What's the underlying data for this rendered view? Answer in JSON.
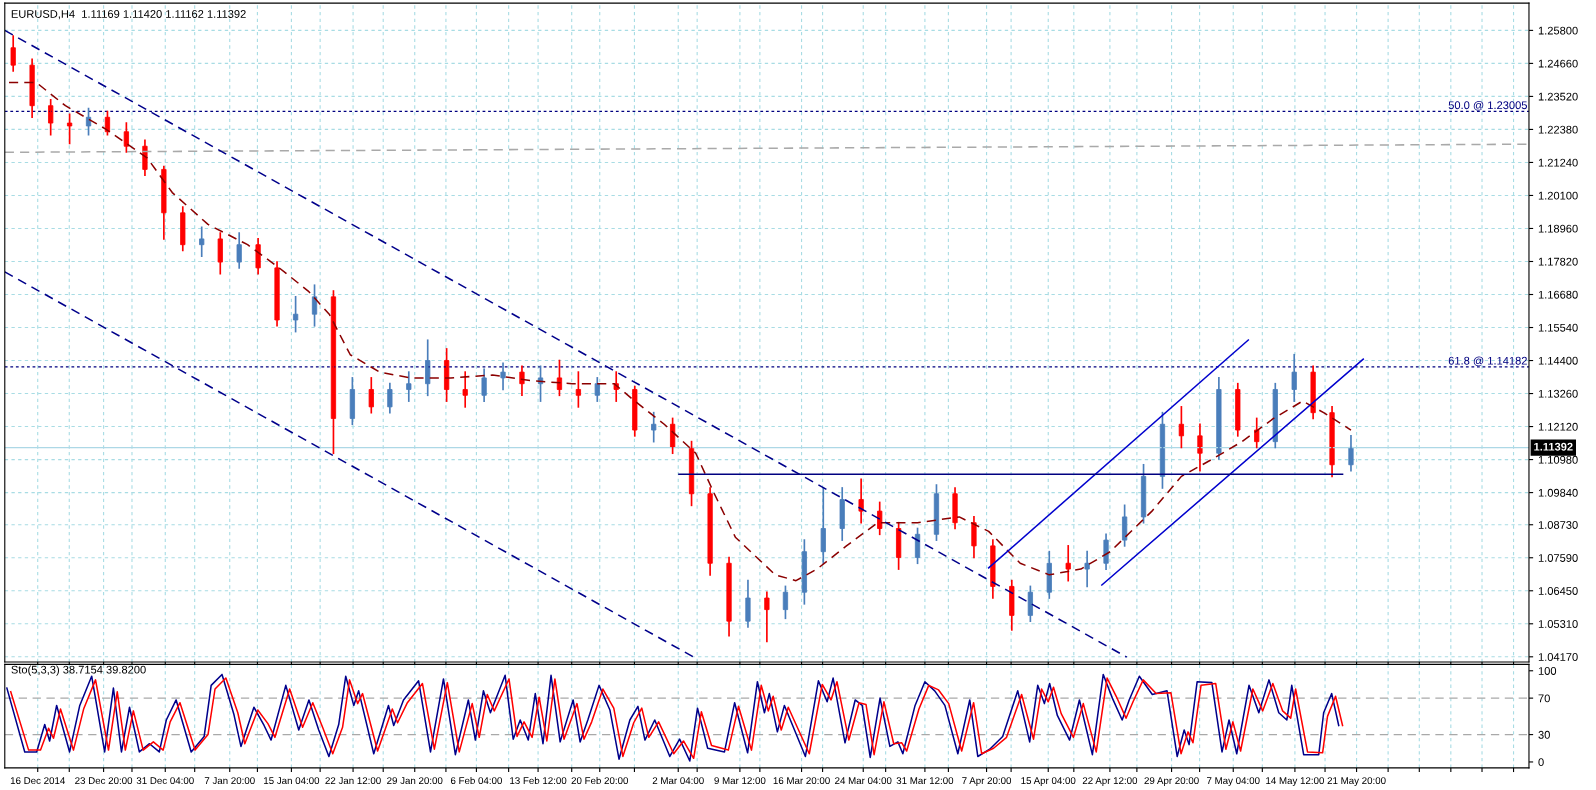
{
  "chart_data": [
    {
      "type": "candlestick",
      "title": "EURUSD,H4  1.11169 1.11420 1.11162 1.11392",
      "x": [
        "2014-12-13T02:00",
        "2014-12-15T08:00",
        "2014-12-17T13:00",
        "2014-12-19T19:00",
        "2014-12-22T01:00",
        "2014-12-24T07:00",
        "2014-12-26T13:00",
        "2014-12-28T18:00",
        "2014-12-31T00:00",
        "2015-01-02T06:00",
        "2015-01-04T12:00",
        "2015-01-06T17:00",
        "2015-01-08T23:00",
        "2015-01-11T05:00",
        "2015-01-13T11:00",
        "2015-01-15T16:00",
        "2015-01-17T22:00",
        "2015-01-20T04:00",
        "2015-01-22T10:00",
        "2015-01-24T16:00",
        "2015-01-26T21:00",
        "2015-01-29T03:00",
        "2015-01-31T09:00",
        "2015-02-02T15:00",
        "2015-02-04T20:00",
        "2015-02-07T02:00",
        "2015-02-09T08:00",
        "2015-02-11T14:00",
        "2015-02-13T19:00",
        "2015-02-16T01:00",
        "2015-02-18T07:00",
        "2015-02-20T13:00",
        "2015-02-22T19:00",
        "2015-02-25T00:00",
        "2015-02-27T06:00",
        "2015-03-01T12:00",
        "2015-03-03T18:00",
        "2015-03-05T23:00",
        "2015-03-08T05:00",
        "2015-03-10T11:00",
        "2015-03-12T17:00",
        "2015-03-14T22:00",
        "2015-03-17T04:00",
        "2015-03-19T10:00",
        "2015-03-21T16:00",
        "2015-03-23T22:00",
        "2015-03-26T03:00",
        "2015-03-28T09:00",
        "2015-03-30T15:00",
        "2015-04-01T21:00",
        "2015-04-04T02:00",
        "2015-04-06T08:00",
        "2015-04-08T14:00",
        "2015-04-10T20:00",
        "2015-04-13T01:00",
        "2015-04-15T07:00",
        "2015-04-17T13:00",
        "2015-04-19T19:00",
        "2015-04-22T01:00",
        "2015-04-24T06:00",
        "2015-04-26T12:00",
        "2015-04-28T18:00",
        "2015-05-01T00:00",
        "2015-05-03T05:00",
        "2015-05-05T11:00",
        "2015-05-07T17:00",
        "2015-05-09T23:00",
        "2015-05-12T04:00",
        "2015-05-14T10:00",
        "2015-05-16T16:00",
        "2015-05-18T22:00",
        "2015-05-21T04:00"
      ],
      "ohlc": [
        [
          1.252,
          1.256,
          1.244,
          1.246
        ],
        [
          1.246,
          1.248,
          1.228,
          1.232
        ],
        [
          1.232,
          1.234,
          1.222,
          1.226
        ],
        [
          1.226,
          1.229,
          1.219,
          1.225
        ],
        [
          1.225,
          1.231,
          1.222,
          1.228
        ],
        [
          1.228,
          1.23,
          1.222,
          1.223
        ],
        [
          1.223,
          1.226,
          1.216,
          1.218
        ],
        [
          1.218,
          1.22,
          1.208,
          1.21
        ],
        [
          1.21,
          1.211,
          1.186,
          1.195
        ],
        [
          1.195,
          1.197,
          1.182,
          1.184
        ],
        [
          1.184,
          1.19,
          1.18,
          1.186
        ],
        [
          1.186,
          1.188,
          1.174,
          1.178
        ],
        [
          1.178,
          1.188,
          1.176,
          1.184
        ],
        [
          1.184,
          1.186,
          1.174,
          1.176
        ],
        [
          1.176,
          1.178,
          1.156,
          1.158
        ],
        [
          1.158,
          1.166,
          1.154,
          1.16
        ],
        [
          1.16,
          1.17,
          1.156,
          1.166
        ],
        [
          1.166,
          1.168,
          1.112,
          1.124
        ],
        [
          1.124,
          1.138,
          1.122,
          1.134
        ],
        [
          1.134,
          1.138,
          1.126,
          1.128
        ],
        [
          1.128,
          1.136,
          1.126,
          1.134
        ],
        [
          1.134,
          1.14,
          1.13,
          1.136
        ],
        [
          1.136,
          1.151,
          1.132,
          1.144
        ],
        [
          1.144,
          1.148,
          1.13,
          1.134
        ],
        [
          1.134,
          1.14,
          1.128,
          1.132
        ],
        [
          1.132,
          1.141,
          1.13,
          1.138
        ],
        [
          1.138,
          1.143,
          1.134,
          1.14
        ],
        [
          1.14,
          1.142,
          1.132,
          1.136
        ],
        [
          1.136,
          1.142,
          1.13,
          1.138
        ],
        [
          1.138,
          1.144,
          1.132,
          1.134
        ],
        [
          1.134,
          1.14,
          1.128,
          1.132
        ],
        [
          1.132,
          1.138,
          1.13,
          1.136
        ],
        [
          1.136,
          1.14,
          1.13,
          1.134
        ],
        [
          1.134,
          1.135,
          1.118,
          1.12
        ],
        [
          1.12,
          1.126,
          1.116,
          1.122
        ],
        [
          1.122,
          1.124,
          1.112,
          1.114
        ],
        [
          1.114,
          1.116,
          1.094,
          1.098
        ],
        [
          1.098,
          1.1,
          1.07,
          1.074
        ],
        [
          1.074,
          1.076,
          1.049,
          1.054
        ],
        [
          1.054,
          1.068,
          1.052,
          1.062
        ],
        [
          1.062,
          1.064,
          1.047,
          1.058
        ],
        [
          1.058,
          1.066,
          1.055,
          1.064
        ],
        [
          1.064,
          1.082,
          1.06,
          1.078
        ],
        [
          1.078,
          1.1,
          1.074,
          1.086
        ],
        [
          1.086,
          1.1,
          1.082,
          1.096
        ],
        [
          1.096,
          1.103,
          1.088,
          1.092
        ],
        [
          1.092,
          1.095,
          1.084,
          1.086
        ],
        [
          1.086,
          1.088,
          1.072,
          1.076
        ],
        [
          1.076,
          1.086,
          1.074,
          1.084
        ],
        [
          1.084,
          1.101,
          1.082,
          1.098
        ],
        [
          1.098,
          1.1,
          1.086,
          1.088
        ],
        [
          1.088,
          1.09,
          1.076,
          1.08
        ],
        [
          1.08,
          1.082,
          1.062,
          1.066
        ],
        [
          1.066,
          1.068,
          1.051,
          1.056
        ],
        [
          1.056,
          1.066,
          1.054,
          1.064
        ],
        [
          1.064,
          1.078,
          1.062,
          1.074
        ],
        [
          1.074,
          1.08,
          1.068,
          1.072
        ],
        [
          1.072,
          1.078,
          1.066,
          1.074
        ],
        [
          1.074,
          1.084,
          1.072,
          1.082
        ],
        [
          1.082,
          1.094,
          1.08,
          1.09
        ],
        [
          1.09,
          1.108,
          1.088,
          1.104
        ],
        [
          1.104,
          1.126,
          1.1,
          1.122
        ],
        [
          1.122,
          1.128,
          1.114,
          1.118
        ],
        [
          1.118,
          1.122,
          1.106,
          1.112
        ],
        [
          1.112,
          1.138,
          1.11,
          1.134
        ],
        [
          1.134,
          1.136,
          1.118,
          1.12
        ],
        [
          1.12,
          1.124,
          1.114,
          1.116
        ],
        [
          1.116,
          1.136,
          1.114,
          1.134
        ],
        [
          1.134,
          1.146,
          1.13,
          1.14
        ],
        [
          1.14,
          1.142,
          1.124,
          1.126
        ],
        [
          1.126,
          1.128,
          1.104,
          1.108
        ],
        [
          1.108,
          1.118,
          1.106,
          1.114
        ]
      ],
      "colors": [
        "#ff0000",
        "#ff0000",
        "#ff0000",
        "#ff0000",
        "#4a7ebb",
        "#ff0000",
        "#ff0000",
        "#ff0000",
        "#ff0000",
        "#ff0000",
        "#4a7ebb",
        "#ff0000",
        "#4a7ebb",
        "#ff0000",
        "#ff0000",
        "#4a7ebb",
        "#4a7ebb",
        "#ff0000",
        "#4a7ebb",
        "#ff0000",
        "#4a7ebb",
        "#4a7ebb",
        "#4a7ebb",
        "#ff0000",
        "#ff0000",
        "#4a7ebb",
        "#4a7ebb",
        "#ff0000",
        "#4a7ebb",
        "#ff0000",
        "#ff0000",
        "#4a7ebb",
        "#ff0000",
        "#ff0000",
        "#4a7ebb",
        "#ff0000",
        "#ff0000",
        "#ff0000",
        "#ff0000",
        "#4a7ebb",
        "#ff0000",
        "#4a7ebb",
        "#4a7ebb",
        "#4a7ebb",
        "#4a7ebb",
        "#ff0000",
        "#ff0000",
        "#ff0000",
        "#4a7ebb",
        "#4a7ebb",
        "#ff0000",
        "#ff0000",
        "#ff0000",
        "#ff0000",
        "#4a7ebb",
        "#4a7ebb",
        "#ff0000",
        "#4a7ebb",
        "#4a7ebb",
        "#4a7ebb",
        "#4a7ebb",
        "#4a7ebb",
        "#ff0000",
        "#ff0000",
        "#4a7ebb",
        "#ff0000",
        "#ff0000",
        "#4a7ebb",
        "#4a7ebb",
        "#ff0000",
        "#ff0000",
        "#4a7ebb"
      ],
      "series": [
        {
          "type": "line",
          "color": "#8b0000",
          "line_style": "dashed",
          "x": [
            "2014-12-12T14:00",
            "2014-12-15T20:00",
            "2014-12-19T07:00",
            "2014-12-24T01:00",
            "2014-12-29T00:00",
            "2015-01-01T00:00",
            "2015-01-05T06:00",
            "2015-01-09T23:00",
            "2015-01-13T17:00",
            "2015-01-17T04:00",
            "2015-01-19T16:00",
            "2015-01-22T04:00",
            "2015-01-25T16:00",
            "2015-01-29T09:00",
            "2015-02-03T03:00",
            "2015-02-08T02:00",
            "2015-02-12T20:00",
            "2015-02-17T13:00",
            "2015-02-22T13:00",
            "2015-02-25T00:00",
            "2015-02-28T12:00",
            "2015-03-04T06:00",
            "2015-03-06T11:00",
            "2015-03-08T23:00",
            "2015-03-13T17:00",
            "2015-03-16T04:00",
            "2015-03-18T16:00",
            "2015-03-22T04:00",
            "2015-03-25T21:00",
            "2015-03-30T15:00",
            "2015-04-04T14:00",
            "2015-04-08T02:00",
            "2015-04-11T20:00",
            "2015-04-15T07:00",
            "2015-04-19T01:00",
            "2015-04-22T13:00",
            "2015-04-27T12:00",
            "2015-05-01T00:00",
            "2015-05-04T17:00",
            "2015-05-08T05:00",
            "2015-05-11T23:00",
            "2015-05-15T10:00",
            "2015-05-17T22:00",
            "2015-05-21T04:00"
          ],
          "values": [
            1.24,
            1.24,
            1.232,
            1.224,
            1.214,
            1.202,
            1.191,
            1.184,
            1.176,
            1.168,
            1.16,
            1.146,
            1.14,
            1.138,
            1.138,
            1.139,
            1.137,
            1.136,
            1.136,
            1.13,
            1.122,
            1.112,
            1.098,
            1.083,
            1.07,
            1.068,
            1.072,
            1.08,
            1.088,
            1.088,
            1.09,
            1.085,
            1.074,
            1.07,
            1.072,
            1.078,
            1.092,
            1.104,
            1.11,
            1.116,
            1.124,
            1.13,
            1.126,
            1.12
          ]
        },
        {
          "type": "line",
          "color": "#a9a9a9",
          "line_style": "dashed",
          "x": [
            "2014-12-12T02:00",
            "2015-06-11T08:00"
          ],
          "values": [
            1.2159,
            1.2187
          ]
        },
        {
          "type": "line",
          "color": "#00008b",
          "line_style": "dashed",
          "x": [
            "2014-12-12T02:00",
            "2015-04-24T12:00"
          ],
          "values": [
            1.258,
            1.0416
          ]
        },
        {
          "type": "line",
          "color": "#00008b",
          "line_style": "dashed",
          "x": [
            "2014-12-12T02:00",
            "2015-03-04T00:00"
          ],
          "values": [
            1.1746,
            1.0416
          ]
        },
        {
          "type": "line",
          "color": "#0000cd",
          "line_style": "solid",
          "x": [
            "2015-04-21T13:00",
            "2015-05-22T15:00"
          ],
          "values": [
            1.0665,
            1.1445
          ]
        },
        {
          "type": "line",
          "color": "#0000cd",
          "line_style": "solid",
          "x": [
            "2015-04-08T02:00",
            "2015-05-08T23:00"
          ],
          "values": [
            1.0724,
            1.1511
          ]
        },
        {
          "type": "line",
          "color": "#000080",
          "line_style": "solid",
          "x": [
            "2015-03-02T06:00",
            "2015-05-20T04:00"
          ],
          "values": [
            1.1047,
            1.1047
          ]
        }
      ],
      "ref_lines": [
        {
          "axis": "y",
          "value": 1.23005,
          "label": "50.0 @ 1.23005",
          "color": "#000080",
          "line_style": "dotted"
        },
        {
          "axis": "y",
          "value": 1.14182,
          "label": "61.8 @ 1.14182",
          "color": "#000080",
          "line_style": "dotted"
        },
        {
          "axis": "y",
          "value": 1.11392,
          "label": "1.11392",
          "color": "#add8e6",
          "line_style": "solid"
        }
      ],
      "xlim": [
        "2014-12-12T02:00",
        "2015-06-11T08:00"
      ],
      "ylim": [
        1.0399,
        1.2674
      ],
      "xticks": [
        "2014-12-16T00:00",
        "2014-12-23T20:00",
        "2014-12-31T04:00",
        "2015-01-07T20:00",
        "2015-01-15T04:00",
        "2015-01-22T12:00",
        "2015-01-29T20:00",
        "2015-02-06T04:00",
        "2015-02-13T12:00",
        "2015-02-20T20:00",
        "2015-03-02T04:00",
        "2015-03-09T12:00",
        "2015-03-16T20:00",
        "2015-03-24T04:00",
        "2015-03-31T12:00",
        "2015-04-07T20:00",
        "2015-04-15T04:00",
        "2015-04-22T12:00",
        "2015-04-29T20:00",
        "2015-05-07T04:00",
        "2015-05-14T12:00",
        "2015-05-21T20:00",
        "2014-12-19T18:00",
        "2014-12-27T05:00",
        "2015-01-03T16:00",
        "2015-01-11T03:00",
        "2015-01-18T14:00",
        "2015-01-26T02:00",
        "2015-02-02T13:00",
        "2015-02-10T00:00",
        "2015-02-17T12:00",
        "2015-02-24T23:00",
        "2015-03-04T10:00",
        "2015-03-11T21:00",
        "2015-03-19T08:00",
        "2015-03-26T20:00",
        "2015-04-03T07:00",
        "2015-04-10T18:00",
        "2015-04-18T05:00",
        "2015-04-25T17:00",
        "2015-05-03T04:00",
        "2015-05-10T15:00",
        "2015-05-18T02:00",
        "2015-05-25T14:00",
        "2015-05-29T07:00",
        "2015-06-02T01:00",
        "2015-06-05T18:00",
        "2015-06-09T12:00"
      ],
      "yticks": [
        {
          "value": 1.258,
          "label": "1.25800"
        },
        {
          "value": 1.2466,
          "label": "1.24660"
        },
        {
          "value": 1.2352,
          "label": "1.23520"
        },
        {
          "value": 1.2238,
          "label": "1.22380"
        },
        {
          "value": 1.2124,
          "label": "1.21240"
        },
        {
          "value": 1.201,
          "label": "1.20100"
        },
        {
          "value": 1.1896,
          "label": "1.18960"
        },
        {
          "value": 1.1782,
          "label": "1.17820"
        },
        {
          "value": 1.1668,
          "label": "1.16680"
        },
        {
          "value": 1.1554,
          "label": "1.15540"
        },
        {
          "value": 1.144,
          "label": "1.14400"
        },
        {
          "value": 1.1326,
          "label": "1.13260"
        },
        {
          "value": 1.1212,
          "label": "1.12120"
        },
        {
          "value": 1.1098,
          "label": "1.10980"
        },
        {
          "value": 1.0984,
          "label": "1.09840"
        },
        {
          "value": 1.0873,
          "label": "1.08730"
        },
        {
          "value": 1.0759,
          "label": "1.07590"
        },
        {
          "value": 1.0645,
          "label": "1.06450"
        },
        {
          "value": 1.0531,
          "label": "1.05310"
        },
        {
          "value": 1.0417,
          "label": "1.04170"
        }
      ],
      "tick_labels": "y",
      "grid": true
    },
    {
      "type": "line",
      "title": "Sto(5,3,3) 38.7154 39.8200",
      "series": [
        {
          "color": "#00008b",
          "x": [
            "2014-12-12T08:00",
            "2014-12-14T11:00",
            "2014-12-15T21:00",
            "2014-12-16T20:00",
            "2014-12-17T10:00",
            "2014-12-18T06:00",
            "2014-12-19T19:00",
            "2014-12-21T00:00",
            "2014-12-22T10:00",
            "2014-12-23T23:00",
            "2014-12-25T00:00",
            "2014-12-25T23:00",
            "2014-12-26T22:00",
            "2014-12-28T02:00",
            "2014-12-29T07:00",
            "2014-12-30T11:00",
            "2014-12-31T07:00",
            "2015-01-01T11:00",
            "2015-01-03T06:00",
            "2015-01-04T19:00",
            "2015-01-05T15:00",
            "2015-01-06T22:00",
            "2015-01-08T08:00",
            "2015-01-09T04:00",
            "2015-01-10T17:00",
            "2015-01-11T22:00",
            "2015-01-12T18:00",
            "2015-01-14T12:00",
            "2015-01-16T01:00",
            "2015-01-17T06:00",
            "2015-01-18T10:00",
            "2015-01-19T15:00",
            "2015-01-20T19:00",
            "2015-01-21T15:00",
            "2015-01-22T14:00",
            "2015-01-23T04:00",
            "2015-01-24T23:00",
            "2015-01-26T17:00",
            "2015-01-27T08:00",
            "2015-01-28T12:00",
            "2015-01-30T07:00",
            "2015-01-31T17:00",
            "2015-02-02T06:00",
            "2015-02-03T16:00",
            "2015-02-05T05:00",
            "2015-02-06T01:00",
            "2015-02-07T00:00",
            "2015-02-07T20:00",
            "2015-02-09T14:00",
            "2015-02-10T13:00",
            "2015-02-11T09:00",
            "2015-02-12T08:00",
            "2015-02-13T04:00",
            "2015-02-14T02:00",
            "2015-02-15T01:00",
            "2015-02-16T03:00",
            "2015-02-17T16:00",
            "2015-02-18T12:00",
            "2015-02-19T10:00",
            "2015-02-20T18:00",
            "2015-02-22T01:00",
            "2015-02-23T03:00",
            "2015-02-24T10:00",
            "2015-02-25T09:00",
            "2015-02-26T05:00",
            "2015-02-27T09:00",
            "2015-03-01T04:00",
            "2015-03-02T08:00",
            "2015-03-03T13:00",
            "2015-03-04T11:00",
            "2015-03-05T16:00",
            "2015-03-07T16:00",
            "2015-03-08T21:00",
            "2015-03-10T10:00",
            "2015-03-11T14:00",
            "2015-03-12T10:00",
            "2015-03-13T00:00",
            "2015-03-13T23:00",
            "2015-03-14T19:00",
            "2015-03-17T07:00",
            "2015-03-18T20:00",
            "2015-03-19T21:00",
            "2015-03-20T14:00",
            "2015-03-22T00:00",
            "2015-03-23T05:00",
            "2015-03-24T01:00",
            "2015-03-25T00:00",
            "2015-03-26T04:00",
            "2015-03-27T08:00",
            "2015-03-28T07:00",
            "2015-03-28T21:00",
            "2015-03-30T08:00",
            "2015-03-31T12:00",
            "2015-04-01T16:00",
            "2015-04-02T21:00",
            "2015-04-04T10:00",
            "2015-04-05T20:00",
            "2015-04-06T19:00",
            "2015-04-08T05:00",
            "2015-04-09T18:00",
            "2015-04-11T13:00",
            "2015-04-12T23:00",
            "2015-04-13T22:00",
            "2015-04-14T17:00",
            "2015-04-15T08:00",
            "2015-04-16T06:00",
            "2015-04-17T17:00",
            "2015-04-18T21:00",
            "2015-04-20T10:00",
            "2015-04-21T17:00",
            "2015-04-22T19:00",
            "2015-04-23T23:00",
            "2015-04-24T19:00",
            "2015-04-26T00:00",
            "2015-04-27T13:00",
            "2015-04-29T07:00",
            "2015-04-30T12:00",
            "2015-05-01T08:00",
            "2015-05-01T22:00",
            "2015-05-02T21:00",
            "2015-05-04T15:00",
            "2015-05-05T20:00",
            "2015-05-06T16:00",
            "2015-05-07T14:00",
            "2015-05-09T01:00",
            "2015-05-10T05:00",
            "2015-05-11T10:00",
            "2015-05-12T14:00",
            "2015-05-13T13:00",
            "2015-05-14T03:00",
            "2015-05-15T13:00",
            "2015-05-17T08:00",
            "2015-05-17T22:00",
            "2015-05-18T21:00",
            "2015-05-19T17:00"
          ],
          "values": [
            81,
            11,
            11,
            41,
            23,
            62,
            11,
            62,
            94,
            11,
            81,
            11,
            60,
            11,
            20,
            11,
            46,
            68,
            11,
            28,
            84,
            96,
            52,
            17,
            60,
            40,
            24,
            84,
            35,
            68,
            35,
            6,
            41,
            94,
            62,
            78,
            9,
            62,
            40,
            68,
            89,
            11,
            91,
            8,
            68,
            24,
            78,
            54,
            95,
            25,
            46,
            24,
            75,
            20,
            95,
            22,
            68,
            22,
            46,
            84,
            57,
            3,
            46,
            61,
            24,
            46,
            6,
            25,
            1,
            59,
            15,
            11,
            65,
            10,
            88,
            54,
            75,
            33,
            62,
            6,
            89,
            66,
            92,
            21,
            68,
            62,
            5,
            70,
            17,
            22,
            9,
            62,
            88,
            78,
            62,
            9,
            68,
            6,
            14,
            28,
            78,
            22,
            84,
            64,
            86,
            51,
            24,
            68,
            8,
            96,
            70,
            46,
            68,
            94,
            74,
            78,
            6,
            35,
            19,
            88,
            87,
            11,
            46,
            9,
            84,
            54,
            90,
            54,
            46,
            84,
            8,
            8,
            54,
            75,
            40
          ]
        },
        {
          "color": "#ff0000",
          "x": [
            "2014-12-12T19:00",
            "2014-12-14T22:00",
            "2014-12-16T08:00",
            "2014-12-17T07:00",
            "2014-12-17T21:00",
            "2014-12-18T17:00",
            "2014-12-20T06:00",
            "2014-12-21T11:00",
            "2014-12-22T21:00",
            "2014-12-24T10:00",
            "2014-12-25T11:00",
            "2014-12-26T10:00",
            "2014-12-27T09:00",
            "2014-12-28T13:00",
            "2014-12-29T18:00",
            "2014-12-30T22:00",
            "2014-12-31T18:00",
            "2015-01-01T22:00",
            "2015-01-03T17:00",
            "2015-01-05T06:00",
            "2015-01-06T02:00",
            "2015-01-07T09:00",
            "2015-01-08T19:00",
            "2015-01-09T15:00",
            "2015-01-11T04:00",
            "2015-01-12T09:00",
            "2015-01-13T05:00",
            "2015-01-14T23:00",
            "2015-01-16T12:00",
            "2015-01-17T17:00",
            "2015-01-18T21:00",
            "2015-01-20T02:00",
            "2015-01-21T06:00",
            "2015-01-22T02:00",
            "2015-01-23T01:00",
            "2015-01-23T15:00",
            "2015-01-25T10:00",
            "2015-01-27T04:00",
            "2015-01-27T19:00",
            "2015-01-28T23:00",
            "2015-01-30T18:00",
            "2015-02-01T04:00",
            "2015-02-02T17:00",
            "2015-02-04T03:00",
            "2015-02-05T16:00",
            "2015-02-06T12:00",
            "2015-02-07T11:00",
            "2015-02-08T07:00",
            "2015-02-10T01:00",
            "2015-02-11T00:00",
            "2015-02-11T20:00",
            "2015-02-12T19:00",
            "2015-02-13T15:00",
            "2015-02-14T13:00",
            "2015-02-15T12:00",
            "2015-02-16T14:00",
            "2015-02-18T03:00",
            "2015-02-18T23:00",
            "2015-02-19T21:00",
            "2015-02-21T05:00",
            "2015-02-22T12:00",
            "2015-02-23T14:00",
            "2015-02-24T21:00",
            "2015-02-25T20:00",
            "2015-02-26T16:00",
            "2015-02-27T20:00",
            "2015-03-01T15:00",
            "2015-03-02T19:00",
            "2015-03-04T00:00",
            "2015-03-04T22:00",
            "2015-03-06T03:00",
            "2015-03-08T03:00",
            "2015-03-09T08:00",
            "2015-03-10T21:00",
            "2015-03-12T01:00",
            "2015-03-12T21:00",
            "2015-03-13T11:00",
            "2015-03-14T10:00",
            "2015-03-15T06:00",
            "2015-03-17T18:00",
            "2015-03-19T07:00",
            "2015-03-20T08:00",
            "2015-03-21T01:00",
            "2015-03-22T11:00",
            "2015-03-23T16:00",
            "2015-03-24T12:00",
            "2015-03-25T11:00",
            "2015-03-26T15:00",
            "2015-03-27T19:00",
            "2015-03-28T18:00",
            "2015-03-29T08:00",
            "2015-03-30T19:00",
            "2015-03-31T23:00",
            "2015-04-02T03:00",
            "2015-04-03T08:00",
            "2015-04-04T21:00",
            "2015-04-06T07:00",
            "2015-04-07T06:00",
            "2015-04-08T16:00",
            "2015-04-10T05:00",
            "2015-04-12T00:00",
            "2015-04-13T10:00",
            "2015-04-14T09:00",
            "2015-04-15T04:00",
            "2015-04-15T19:00",
            "2015-04-16T17:00",
            "2015-04-18T04:00",
            "2015-04-19T08:00",
            "2015-04-20T21:00",
            "2015-04-22T04:00",
            "2015-04-23T06:00",
            "2015-04-24T10:00",
            "2015-04-25T06:00",
            "2015-04-26T11:00",
            "2015-04-28T00:00",
            "2015-04-29T18:00",
            "2015-04-30T23:00",
            "2015-05-01T19:00",
            "2015-05-02T09:00",
            "2015-05-03T08:00",
            "2015-05-05T02:00",
            "2015-05-06T07:00",
            "2015-05-07T03:00",
            "2015-05-08T01:00",
            "2015-05-09T12:00",
            "2015-05-10T16:00",
            "2015-05-11T21:00",
            "2015-05-13T01:00",
            "2015-05-14T00:00",
            "2015-05-14T14:00",
            "2015-05-16T00:00",
            "2015-05-17T19:00",
            "2015-05-18T09:00",
            "2015-05-19T08:00",
            "2015-05-20T04:00"
          ],
          "values": [
            77,
            13,
            13,
            37,
            26,
            58,
            13,
            58,
            90,
            13,
            77,
            13,
            56,
            13,
            22,
            13,
            44,
            65,
            13,
            30,
            80,
            92,
            54,
            20,
            57,
            42,
            27,
            80,
            38,
            65,
            38,
            9,
            38,
            90,
            64,
            75,
            12,
            58,
            43,
            65,
            86,
            14,
            87,
            11,
            64,
            27,
            74,
            56,
            91,
            28,
            44,
            27,
            71,
            23,
            91,
            25,
            64,
            25,
            44,
            80,
            59,
            6,
            43,
            59,
            27,
            44,
            9,
            23,
            4,
            55,
            18,
            13,
            61,
            13,
            84,
            56,
            72,
            35,
            60,
            9,
            85,
            68,
            88,
            24,
            65,
            63,
            8,
            66,
            20,
            21,
            12,
            58,
            84,
            79,
            64,
            12,
            65,
            9,
            15,
            27,
            74,
            25,
            80,
            66,
            82,
            53,
            27,
            64,
            11,
            92,
            72,
            48,
            66,
            90,
            75,
            76,
            9,
            33,
            21,
            84,
            86,
            14,
            44,
            12,
            80,
            56,
            86,
            56,
            48,
            80,
            11,
            10,
            50,
            72,
            40
          ]
        }
      ],
      "ref_lines": [
        {
          "axis": "y",
          "value": 70,
          "color": "#a9a9a9",
          "line_style": "dashed"
        },
        {
          "axis": "y",
          "value": 30,
          "color": "#a9a9a9",
          "line_style": "dashed"
        }
      ],
      "xlim": [
        "2014-12-12T02:00",
        "2015-06-11T08:00"
      ],
      "ylim": [
        -6.5,
        107
      ],
      "xticks": [
        {
          "value": "2014-12-16T00:00",
          "label": "16 Dec 2014"
        },
        {
          "value": "2014-12-23T20:00",
          "label": "23 Dec 20:00"
        },
        {
          "value": "2014-12-31T04:00",
          "label": "31 Dec 04:00"
        },
        {
          "value": "2015-01-07T20:00",
          "label": "7 Jan 20:00"
        },
        {
          "value": "2015-01-15T04:00",
          "label": "15 Jan 04:00"
        },
        {
          "value": "2015-01-22T12:00",
          "label": "22 Jan 12:00"
        },
        {
          "value": "2015-01-29T20:00",
          "label": "29 Jan 20:00"
        },
        {
          "value": "2015-02-06T04:00",
          "label": "6 Feb 04:00"
        },
        {
          "value": "2015-02-13T12:00",
          "label": "13 Feb 12:00"
        },
        {
          "value": "2015-02-20T20:00",
          "label": "20 Feb 20:00"
        },
        {
          "value": "2015-03-02T04:00",
          "label": "2 Mar 04:00"
        },
        {
          "value": "2015-03-09T12:00",
          "label": "9 Mar 12:00"
        },
        {
          "value": "2015-03-16T20:00",
          "label": "16 Mar 20:00"
        },
        {
          "value": "2015-03-24T04:00",
          "label": "24 Mar 04:00"
        },
        {
          "value": "2015-03-31T12:00",
          "label": "31 Mar 12:00"
        },
        {
          "value": "2015-04-07T20:00",
          "label": "7 Apr 20:00"
        },
        {
          "value": "2015-04-15T04:00",
          "label": "15 Apr 04:00"
        },
        {
          "value": "2015-04-22T12:00",
          "label": "22 Apr 12:00"
        },
        {
          "value": "2015-04-29T20:00",
          "label": "29 Apr 20:00"
        },
        {
          "value": "2015-05-07T04:00",
          "label": "7 May 04:00"
        },
        {
          "value": "2015-05-14T12:00",
          "label": "14 May 12:00"
        },
        {
          "value": "2015-05-21T20:00",
          "label": "21 May 20:00"
        },
        {
          "value": "2014-12-19T18:00",
          "label": null
        },
        {
          "value": "2014-12-27T05:00",
          "label": null
        },
        {
          "value": "2015-01-03T16:00",
          "label": null
        },
        {
          "value": "2015-01-11T03:00",
          "label": null
        },
        {
          "value": "2015-01-18T14:00",
          "label": null
        },
        {
          "value": "2015-01-26T02:00",
          "label": null
        },
        {
          "value": "2015-02-02T13:00",
          "label": null
        },
        {
          "value": "2015-02-10T00:00",
          "label": null
        },
        {
          "value": "2015-02-17T12:00",
          "label": null
        },
        {
          "value": "2015-02-24T23:00",
          "label": null
        },
        {
          "value": "2015-03-04T10:00",
          "label": null
        },
        {
          "value": "2015-03-11T21:00",
          "label": null
        },
        {
          "value": "2015-03-19T08:00",
          "label": null
        },
        {
          "value": "2015-03-26T20:00",
          "label": null
        },
        {
          "value": "2015-04-03T07:00",
          "label": null
        },
        {
          "value": "2015-04-10T18:00",
          "label": null
        },
        {
          "value": "2015-04-18T05:00",
          "label": null
        },
        {
          "value": "2015-04-25T17:00",
          "label": null
        },
        {
          "value": "2015-05-03T04:00",
          "label": null
        },
        {
          "value": "2015-05-10T15:00",
          "label": null
        },
        {
          "value": "2015-05-18T02:00",
          "label": null
        },
        {
          "value": "2015-05-25T14:00",
          "label": null
        },
        {
          "value": "2015-05-29T07:00",
          "label": null
        },
        {
          "value": "2015-06-02T01:00",
          "label": null
        },
        {
          "value": "2015-06-05T18:00",
          "label": null
        },
        {
          "value": "2015-06-09T12:00",
          "label": null
        }
      ],
      "yticks": [
        0,
        30,
        70,
        100
      ],
      "grid": "x"
    }
  ]
}
